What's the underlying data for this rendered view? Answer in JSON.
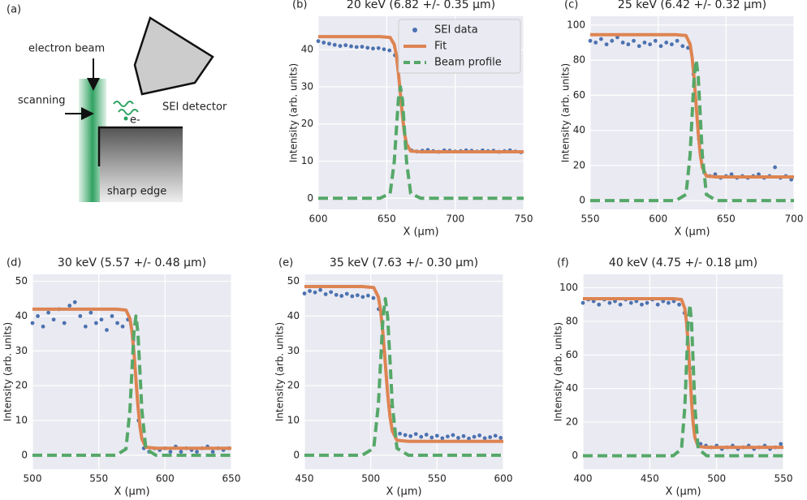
{
  "diagram": {
    "label": "(a)",
    "texts": [
      "electron beam",
      "scanning",
      "SEI detector",
      "e-",
      "sharp edge"
    ]
  },
  "chart_data": [
    {
      "type": "line",
      "panel_label": "(b)",
      "title": "20 keV (6.82 +/- 0.35 µm)",
      "x_label": "X (µm)",
      "y_label": "Intensity (arb. units)",
      "xlim": [
        600,
        750
      ],
      "xticks": [
        600,
        650,
        700,
        750
      ],
      "ylim": [
        -3,
        49
      ],
      "yticks": [
        0,
        10,
        20,
        30,
        40
      ],
      "grid": true,
      "legend": "upper right",
      "series": [
        {
          "name": "SEI data",
          "style": "points",
          "color": "#4c72b0",
          "x": [
            600,
            604,
            608,
            612,
            616,
            620,
            624,
            628,
            632,
            636,
            640,
            644,
            648,
            652,
            656,
            660,
            664,
            668,
            672,
            676,
            680,
            684,
            688,
            692,
            696,
            700,
            704,
            708,
            712,
            716,
            720,
            724,
            728,
            732,
            736,
            740,
            744,
            748
          ],
          "values": [
            42.3,
            41.9,
            41.6,
            41.3,
            41.0,
            41.2,
            40.9,
            40.7,
            40.8,
            40.5,
            40.3,
            40.4,
            40.1,
            39.8,
            38.5,
            27,
            14.5,
            12.9,
            12.6,
            12.8,
            13.0,
            12.7,
            12.5,
            12.9,
            12.8,
            12.6,
            12.7,
            12.9,
            12.8,
            12.6,
            12.9,
            12.7,
            12.8,
            12.5,
            12.7,
            12.9,
            12.6,
            12.4
          ]
        },
        {
          "name": "Fit",
          "style": "line",
          "color": "#dd8452",
          "x": [
            600,
            645,
            652.5,
            655.5,
            657,
            658.5,
            660,
            661.5,
            663,
            664.5,
            667.5,
            675,
            750
          ],
          "values": [
            43.5,
            43.5,
            43.3,
            41.4,
            38.6,
            33.9,
            28,
            22.1,
            17.4,
            14.6,
            12.7,
            12.5,
            12.5
          ]
        },
        {
          "name": "Beam profile",
          "style": "dashed",
          "color": "#55a868",
          "x": [
            600,
            645,
            652.5,
            655.5,
            657,
            658.5,
            660,
            661.5,
            663,
            664.5,
            667.5,
            675,
            750
          ],
          "values": [
            0,
            0,
            1.3,
            9.8,
            18.2,
            26.5,
            30,
            26.5,
            18.2,
            9.8,
            1.3,
            0,
            0
          ]
        }
      ]
    },
    {
      "type": "line",
      "panel_label": "(c)",
      "title": "25 keV (6.42 +/- 0.32 µm)",
      "x_label": "X (µm)",
      "y_label": "Intensity (arb. units)",
      "xlim": [
        550,
        700
      ],
      "xticks": [
        550,
        600,
        650,
        700
      ],
      "ylim": [
        -5,
        105
      ],
      "yticks": [
        0,
        20,
        40,
        60,
        80,
        100
      ],
      "grid": true,
      "series": [
        {
          "style": "points",
          "color": "#4c72b0",
          "x": [
            550,
            554,
            558,
            562,
            566,
            570,
            574,
            578,
            582,
            586,
            590,
            594,
            598,
            602,
            606,
            610,
            614,
            618,
            622,
            626,
            630,
            634,
            638,
            642,
            646,
            650,
            654,
            658,
            662,
            666,
            670,
            674,
            678,
            682,
            686,
            690,
            694,
            698
          ],
          "values": [
            91,
            90,
            92,
            89,
            91,
            93,
            90,
            89,
            91,
            88,
            90,
            89,
            91,
            88,
            90,
            89,
            91,
            88,
            87,
            72,
            35,
            16,
            14,
            15,
            13,
            14,
            15,
            13,
            14,
            13,
            14,
            15,
            13,
            14,
            19,
            13,
            14,
            12
          ]
        },
        {
          "style": "line",
          "color": "#dd8452",
          "x": [
            550,
            613,
            620.5,
            623.5,
            625,
            626.5,
            628,
            629.5,
            631,
            632.5,
            635.5,
            643,
            700
          ],
          "values": [
            94.5,
            94.5,
            94,
            89.1,
            81.6,
            69.5,
            54,
            38.5,
            26.4,
            18.9,
            14,
            13.5,
            13.5
          ]
        },
        {
          "style": "dashed",
          "color": "#55a868",
          "x": [
            550,
            613,
            620.5,
            623.5,
            625,
            626.5,
            628,
            629.5,
            631,
            632.5,
            635.5,
            643,
            700
          ],
          "values": [
            0,
            0,
            3.5,
            26,
            48.6,
            70.6,
            80,
            70.6,
            48.6,
            26,
            3.5,
            0,
            0
          ]
        }
      ]
    },
    {
      "type": "line",
      "panel_label": "(d)",
      "title": "30 keV (5.57 +/- 0.48 µm)",
      "x_label": "X (µm)",
      "y_label": "Intensity (arb. units)",
      "xlim": [
        500,
        650
      ],
      "xticks": [
        500,
        550,
        600,
        650
      ],
      "ylim": [
        -4,
        52
      ],
      "yticks": [
        0,
        10,
        20,
        30,
        40,
        50
      ],
      "grid": true,
      "series": [
        {
          "style": "points",
          "color": "#4c72b0",
          "x": [
            500,
            504,
            508,
            512,
            516,
            520,
            524,
            528,
            532,
            536,
            540,
            544,
            548,
            552,
            556,
            560,
            564,
            568,
            572,
            576,
            580,
            584,
            588,
            592,
            596,
            600,
            604,
            608,
            612,
            616,
            620,
            624,
            628,
            632,
            636,
            640,
            644,
            648
          ],
          "values": [
            38,
            40,
            37,
            41,
            39,
            42,
            38,
            43,
            44,
            40,
            37,
            41,
            38,
            39,
            36,
            40,
            38,
            37,
            39,
            33,
            10,
            2,
            1,
            2,
            1.5,
            2,
            1,
            2.5,
            1,
            2,
            1.5,
            1,
            2,
            2.5,
            1,
            2,
            1.5,
            2
          ]
        },
        {
          "style": "line",
          "color": "#dd8452",
          "x": [
            500,
            563,
            570.5,
            573.5,
            575,
            576.5,
            578,
            579.5,
            581,
            582.5,
            585.5,
            593,
            650
          ],
          "values": [
            42,
            42,
            41.75,
            39.3,
            35.7,
            29.7,
            22,
            14.3,
            8.4,
            4.7,
            2.3,
            2,
            2
          ]
        },
        {
          "style": "dashed",
          "color": "#55a868",
          "x": [
            500,
            563,
            570.5,
            573.5,
            575,
            576.5,
            578,
            579.5,
            581,
            582.5,
            585.5,
            593,
            650
          ],
          "values": [
            0,
            0,
            1.8,
            13,
            24.3,
            35.3,
            40,
            35.3,
            24.3,
            13,
            1.8,
            0,
            0
          ]
        }
      ]
    },
    {
      "type": "line",
      "panel_label": "(e)",
      "title": "35 keV (7.63 +/- 0.30 µm)",
      "x_label": "X (µm)",
      "y_label": "Intensity (arb. units)",
      "xlim": [
        450,
        600
      ],
      "xticks": [
        450,
        500,
        550,
        600
      ],
      "ylim": [
        -4,
        52
      ],
      "yticks": [
        0,
        10,
        20,
        30,
        40,
        50
      ],
      "grid": true,
      "series": [
        {
          "style": "points",
          "color": "#4c72b0",
          "x": [
            450,
            454,
            458,
            462,
            466,
            470,
            474,
            478,
            482,
            486,
            490,
            494,
            498,
            502,
            506,
            510,
            514,
            518,
            522,
            526,
            530,
            534,
            538,
            542,
            546,
            550,
            554,
            558,
            562,
            566,
            570,
            574,
            578,
            582,
            586,
            590,
            594,
            598
          ],
          "values": [
            46.5,
            47.2,
            46.8,
            47.5,
            46.3,
            46.9,
            46.1,
            45.8,
            46.4,
            45.7,
            46.0,
            45.5,
            45.9,
            45.2,
            42,
            30,
            14,
            7.5,
            6.2,
            5.8,
            5.5,
            6.1,
            5.3,
            5.9,
            5.1,
            5.6,
            4.9,
            5.4,
            5.8,
            5.0,
            5.5,
            4.8,
            5.3,
            5.7,
            4.9,
            5.2,
            5.6,
            5.0
          ]
        },
        {
          "style": "line",
          "color": "#dd8452",
          "x": [
            450,
            493.5,
            502.25,
            505.75,
            507.5,
            509.25,
            511,
            512.75,
            514.5,
            516.25,
            519.75,
            528.5,
            600
          ],
          "values": [
            48.5,
            48.5,
            48.2,
            45.5,
            41.4,
            34.8,
            26.3,
            17.7,
            11.1,
            7,
            4.3,
            4,
            4
          ]
        },
        {
          "style": "dashed",
          "color": "#55a868",
          "x": [
            450,
            493.5,
            502.25,
            505.75,
            507.5,
            509.25,
            511,
            512.75,
            514.5,
            516.25,
            519.75,
            528.5,
            600
          ],
          "values": [
            0,
            0,
            2,
            14.6,
            27.3,
            39.7,
            45,
            39.7,
            27.3,
            14.6,
            2,
            0,
            0
          ]
        }
      ]
    },
    {
      "type": "line",
      "panel_label": "(f)",
      "title": "40 keV (4.75 +/- 0.18 µm)",
      "x_label": "X (µm)",
      "y_label": "Intensity (arb. units)",
      "xlim": [
        400,
        550
      ],
      "xticks": [
        400,
        450,
        500,
        550
      ],
      "ylim": [
        -8,
        108
      ],
      "yticks": [
        0,
        20,
        40,
        60,
        80,
        100
      ],
      "grid": true,
      "series": [
        {
          "style": "points",
          "color": "#4c72b0",
          "x": [
            400,
            404,
            408,
            412,
            416,
            420,
            424,
            428,
            432,
            436,
            440,
            444,
            448,
            452,
            456,
            460,
            464,
            468,
            472,
            476,
            480,
            484,
            488,
            492,
            496,
            500,
            504,
            508,
            512,
            516,
            520,
            524,
            528,
            532,
            536,
            540,
            544,
            548
          ],
          "values": [
            91,
            93,
            92,
            90,
            93,
            91,
            92,
            90,
            93,
            91,
            92,
            90,
            91,
            93,
            90,
            92,
            91,
            92,
            90,
            85,
            52,
            15,
            7,
            6,
            5,
            6,
            4,
            5,
            6,
            4,
            5,
            6,
            4,
            5,
            6,
            4,
            5,
            7
          ]
        },
        {
          "style": "line",
          "color": "#dd8452",
          "x": [
            400,
            467.5,
            473.75,
            476.25,
            477.5,
            478.75,
            480,
            481.25,
            482.5,
            483.75,
            486.25,
            492.5,
            550
          ],
          "values": [
            93.5,
            93.5,
            93,
            87.6,
            79.5,
            66.2,
            49.3,
            32.3,
            19,
            10.9,
            5.5,
            5,
            5
          ]
        },
        {
          "style": "dashed",
          "color": "#55a868",
          "x": [
            400,
            467.5,
            473.75,
            476.25,
            477.5,
            478.75,
            480,
            481.25,
            482.5,
            483.75,
            486.25,
            492.5,
            550
          ],
          "values": [
            0,
            0,
            4,
            29.3,
            54.6,
            79.4,
            90,
            79.4,
            54.6,
            29.3,
            4,
            0,
            0
          ]
        }
      ]
    }
  ]
}
